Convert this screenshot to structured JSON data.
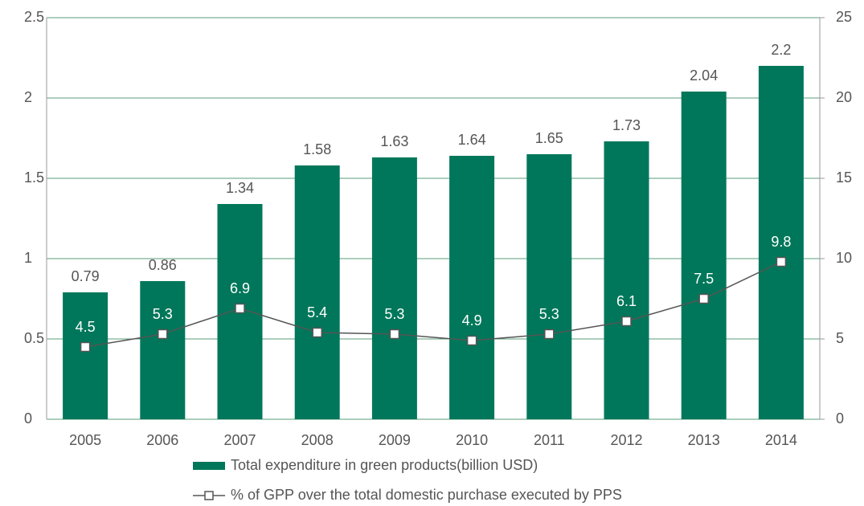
{
  "chart_data": {
    "type": "bar",
    "categories": [
      "2005",
      "2006",
      "2007",
      "2008",
      "2009",
      "2010",
      "2011",
      "2012",
      "2013",
      "2014"
    ],
    "series": [
      {
        "name": "Total expenditure in green products(billion USD)",
        "type": "bar",
        "color": "#00775a",
        "values": [
          0.79,
          0.86,
          1.34,
          1.58,
          1.63,
          1.64,
          1.65,
          1.73,
          2.04,
          2.2
        ]
      },
      {
        "name": "% of GPP over the total domestic purchase executed by PPS",
        "type": "line",
        "axis": "y2",
        "color": "#555555",
        "values": [
          4.5,
          5.3,
          6.9,
          5.4,
          5.3,
          4.9,
          5.3,
          6.1,
          7.5,
          9.8
        ]
      }
    ],
    "ylim": [
      0,
      2.5
    ],
    "yticks": [
      0,
      0.5,
      1,
      1.5,
      2,
      2.5
    ],
    "y2lim": [
      0,
      25
    ],
    "y2ticks": [
      0,
      5,
      10,
      15,
      20,
      25
    ],
    "grid": true,
    "grid_color": "#5a9e7a",
    "legend": "bottom"
  }
}
